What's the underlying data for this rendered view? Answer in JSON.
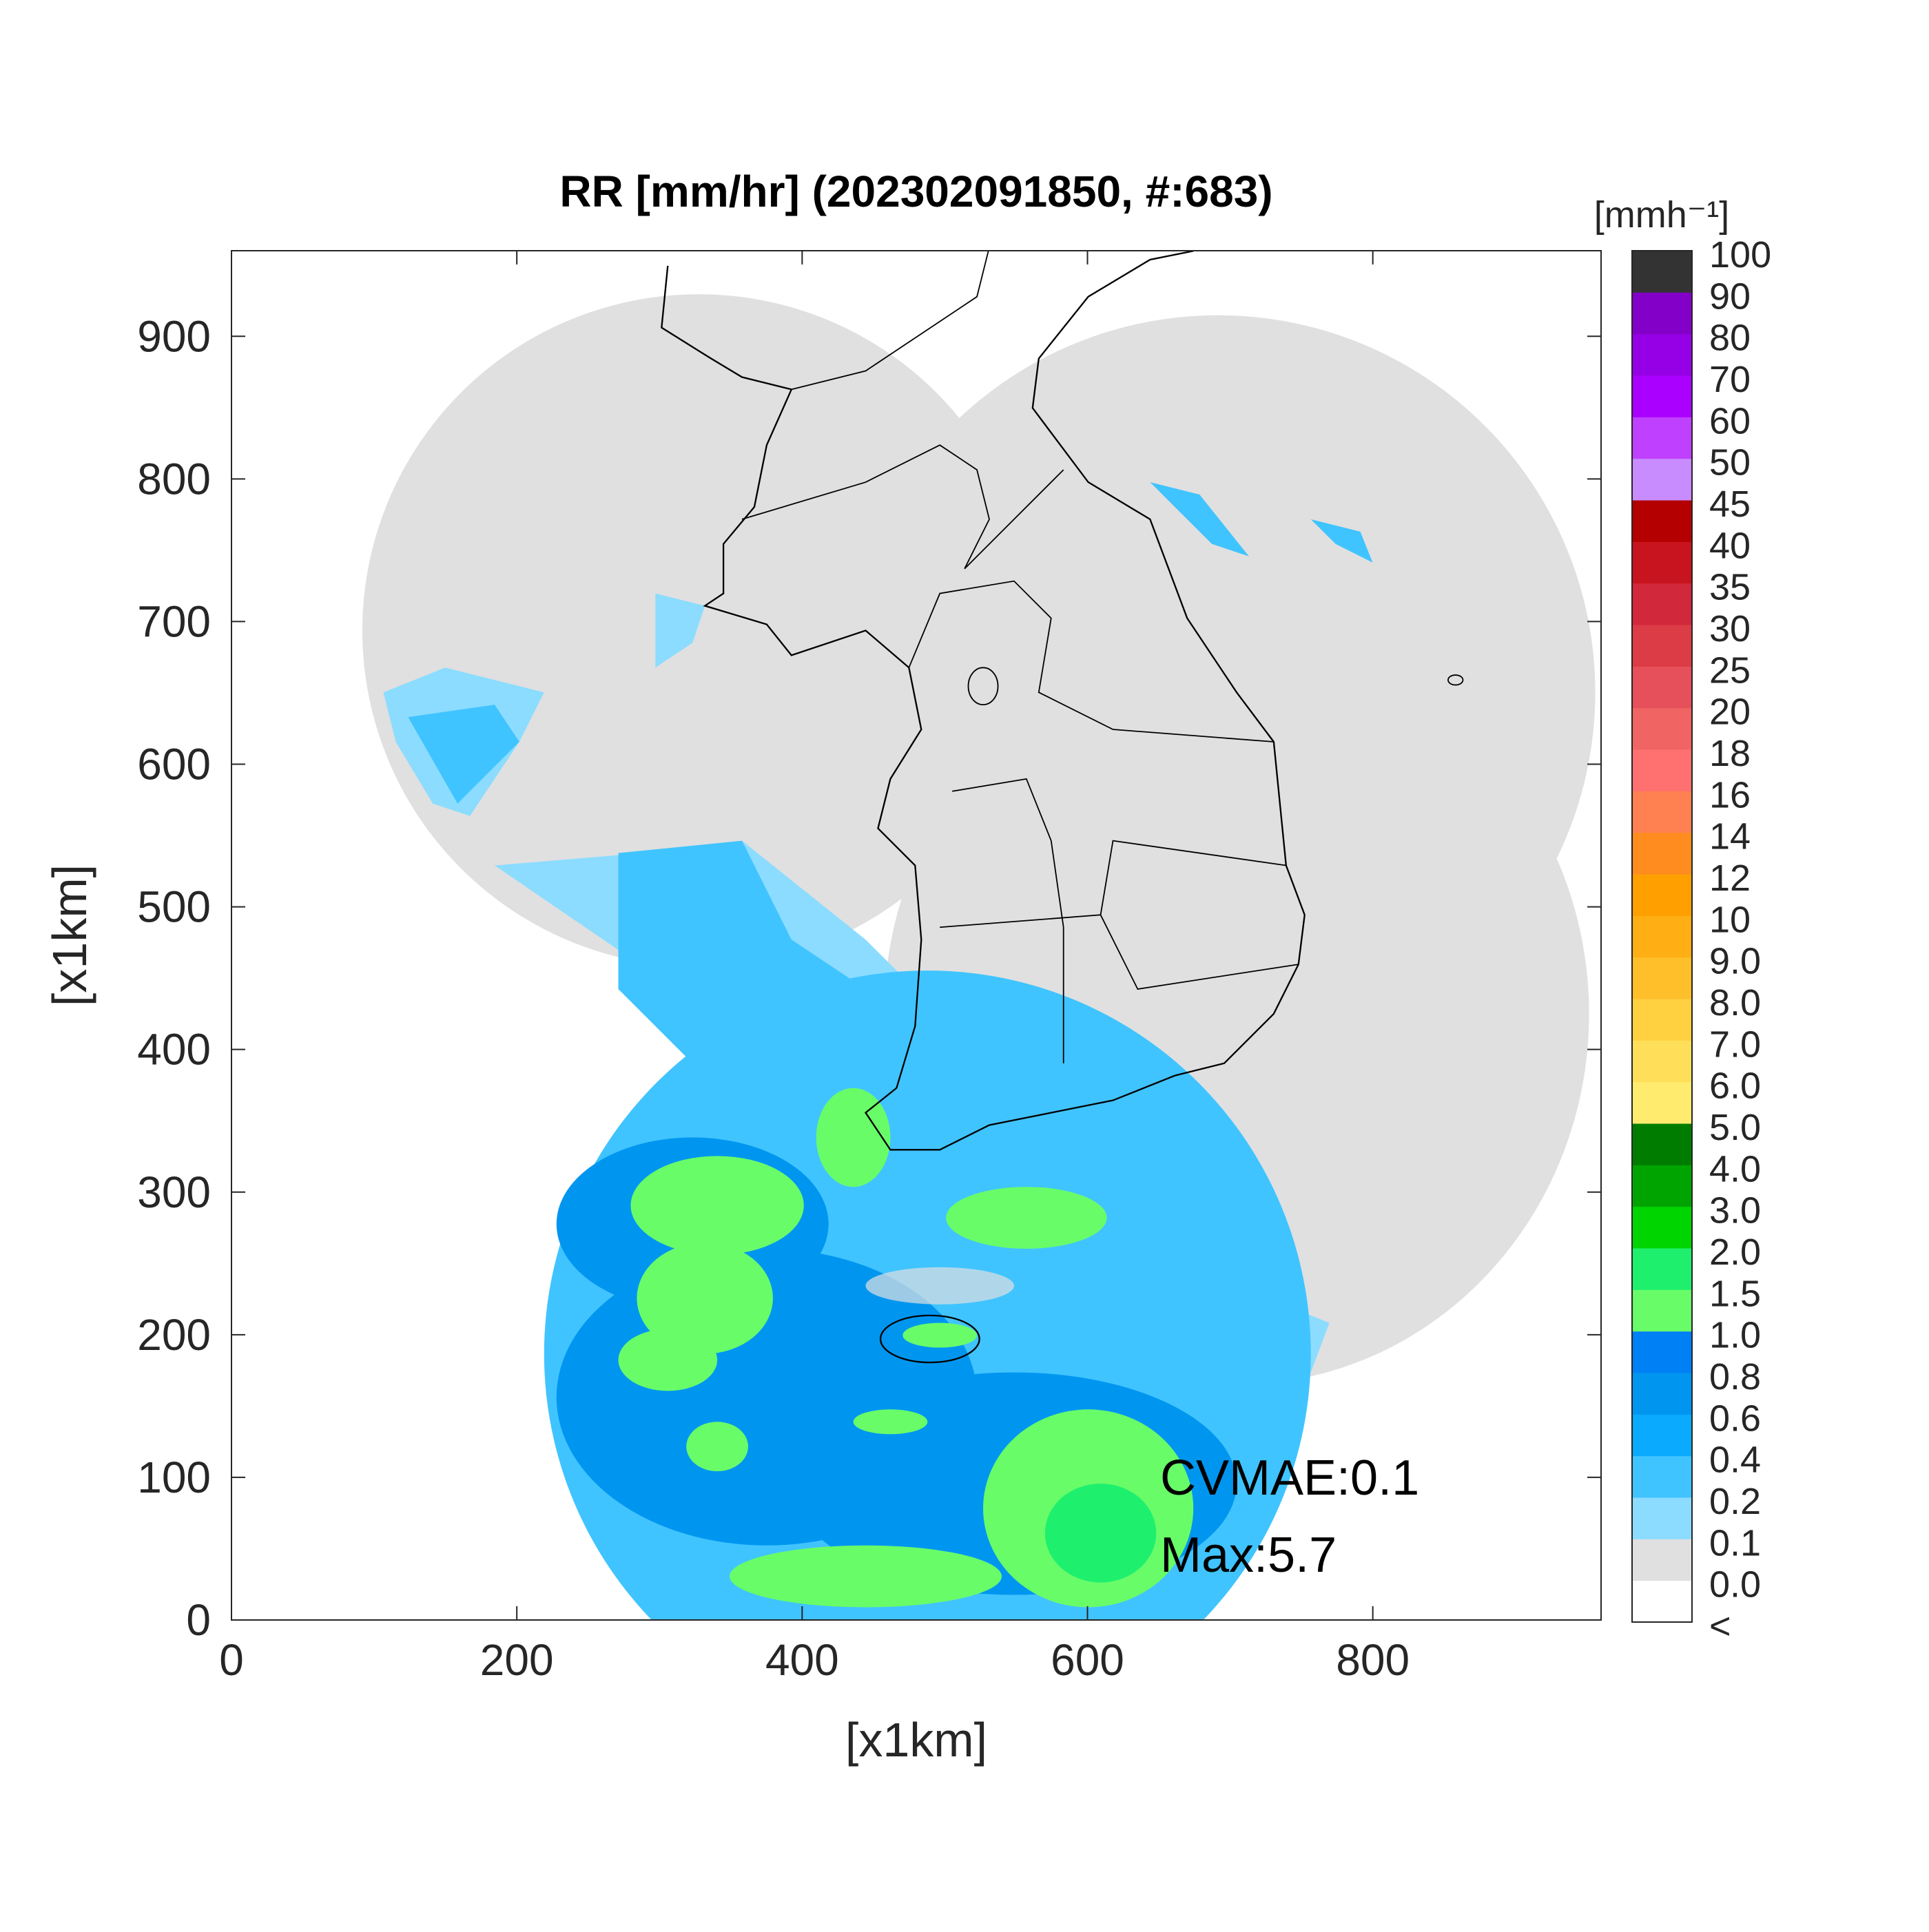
{
  "map": {
    "title": "RR [mm/hr] (202302091850, #:683)",
    "xlabel": "[x1km]",
    "ylabel": "[x1km]",
    "xlim": [
      0,
      960
    ],
    "ylim": [
      0,
      960
    ],
    "xticks": [
      0,
      200,
      400,
      600,
      800
    ],
    "yticks": [
      0,
      100,
      200,
      300,
      400,
      500,
      600,
      700,
      800,
      900
    ],
    "annotations": [
      "CVMAE:0.1",
      "Max:5.7"
    ],
    "colorbar": {
      "title": "[mmh⁻¹]",
      "labels": [
        "<",
        "0.0",
        "0.1",
        "0.2",
        "0.4",
        "0.6",
        "0.8",
        "1.0",
        "1.5",
        "2.0",
        "3.0",
        "4.0",
        "5.0",
        "6.0",
        "7.0",
        "8.0",
        "9.0",
        "10",
        "12",
        "14",
        "16",
        "18",
        "20",
        "25",
        "30",
        "35",
        "40",
        "45",
        "50",
        "60",
        "70",
        "80",
        "90",
        "100"
      ],
      "colors": [
        "#ffffff",
        "#e0e0e0",
        "#8cdcff",
        "#40c4ff",
        "#0aaaff",
        "#0096f0",
        "#0080f5",
        "#69fc69",
        "#1ef06e",
        "#00d500",
        "#00a400",
        "#007d00",
        "#ffec6e",
        "#ffdf5a",
        "#ffd040",
        "#ffbf2a",
        "#ffae14",
        "#ffa000",
        "#ff8c1e",
        "#ff8050",
        "#ff7070",
        "#f06464",
        "#e6505a",
        "#dc3c46",
        "#d2283c",
        "#c8141e",
        "#b40000",
        "#c88cff",
        "#c040ff",
        "#aa00ff",
        "#9600e6",
        "#8200c8",
        "#333333"
      ]
    }
  }
}
